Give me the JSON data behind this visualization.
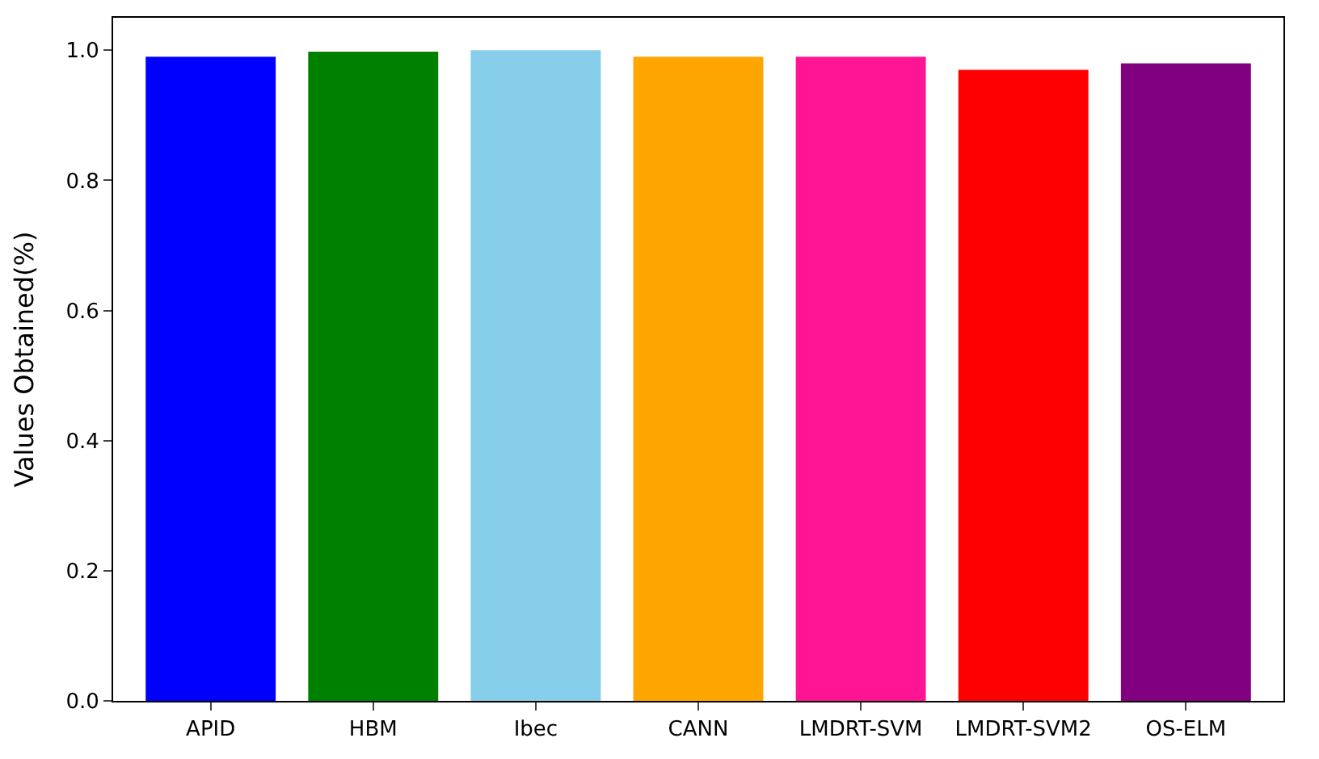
{
  "chart_data": {
    "type": "bar",
    "ylabel": "Values Obtained(%)",
    "categories": [
      "APID",
      "HBM",
      "Ibec",
      "CANN",
      "LMDRT-SVM",
      "LMDRT-SVM2",
      "OS-ELM"
    ],
    "values": [
      0.99,
      0.998,
      1.0,
      0.99,
      0.99,
      0.97,
      0.98
    ],
    "colors": [
      "#0000ff",
      "#008000",
      "#87ceeb",
      "#ffa500",
      "#ff1493",
      "#ff0000",
      "#800080"
    ],
    "ylim": [
      0,
      1.05
    ],
    "yticks": [
      {
        "value": 0,
        "label": "0.0"
      },
      0.2,
      0.4,
      0.6,
      0.8,
      {
        "value": 1,
        "label": "1.0"
      }
    ],
    "grid": false
  }
}
